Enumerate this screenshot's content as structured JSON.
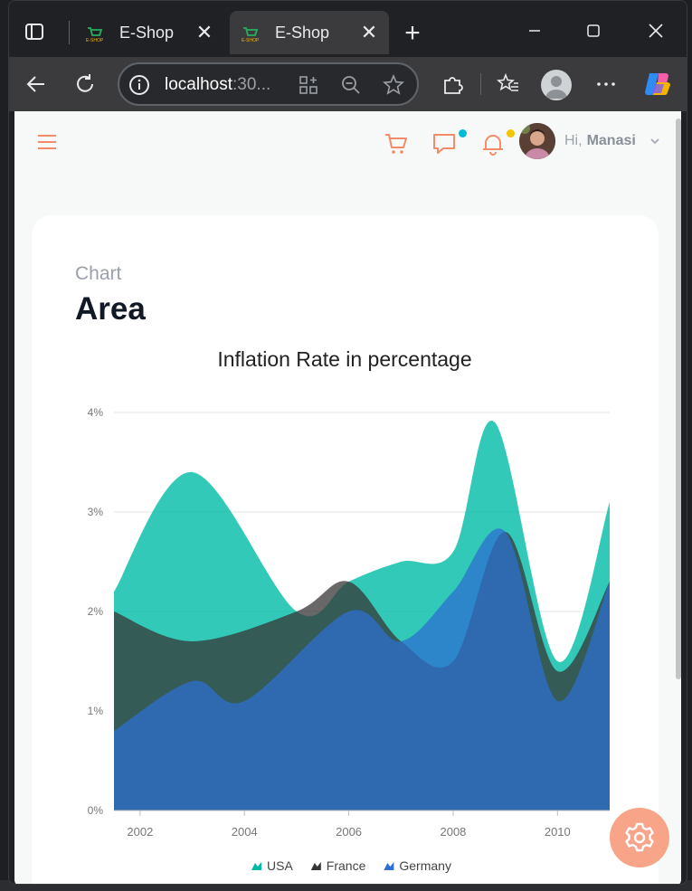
{
  "browser": {
    "tabs": [
      {
        "title": "E-Shop",
        "active": false
      },
      {
        "title": "E-Shop",
        "active": true
      }
    ],
    "address": {
      "host": "localhost",
      "port_truncated": ":30..."
    }
  },
  "appbar": {
    "greeting": "Hi,",
    "user_name": "Manasi",
    "accent_color": "#f28b67",
    "chat_badge_color": "#00bcd4",
    "bell_badge_color": "#f5c400"
  },
  "page": {
    "breadcrumb": "Chart",
    "title": "Area"
  },
  "chart_data": {
    "type": "area",
    "title": "Inflation Rate in percentage",
    "x_ticks": [
      "2002",
      "2004",
      "2006",
      "2008",
      "2010"
    ],
    "y_ticks": [
      "0%",
      "1%",
      "2%",
      "3%",
      "4%"
    ],
    "xlim": [
      2001.5,
      2011.0
    ],
    "ylim": [
      0,
      4
    ],
    "grid": true,
    "legend_position": "bottom",
    "series": [
      {
        "name": "USA",
        "color": "#00bba6",
        "x": [
          2001.5,
          2003.0,
          2005.0,
          2006.0,
          2007.0,
          2008.0,
          2008.8,
          2010.0,
          2011.0
        ],
        "values": [
          2.2,
          3.4,
          2.0,
          2.3,
          2.5,
          2.6,
          3.9,
          1.5,
          3.1
        ]
      },
      {
        "name": "France",
        "color": "#363636",
        "x": [
          2001.5,
          2003.0,
          2005.0,
          2006.0,
          2007.0,
          2008.0,
          2009.0,
          2010.0,
          2011.0
        ],
        "values": [
          2.0,
          1.7,
          2.0,
          2.3,
          1.7,
          1.5,
          2.8,
          1.4,
          2.3
        ]
      },
      {
        "name": "Germany",
        "color": "#2e6fd0",
        "x": [
          2001.5,
          2003.0,
          2004.0,
          2006.0,
          2007.0,
          2008.0,
          2009.0,
          2010.0,
          2011.0
        ],
        "values": [
          0.8,
          1.3,
          1.1,
          2.0,
          1.7,
          2.2,
          2.8,
          1.1,
          2.3
        ]
      }
    ]
  }
}
